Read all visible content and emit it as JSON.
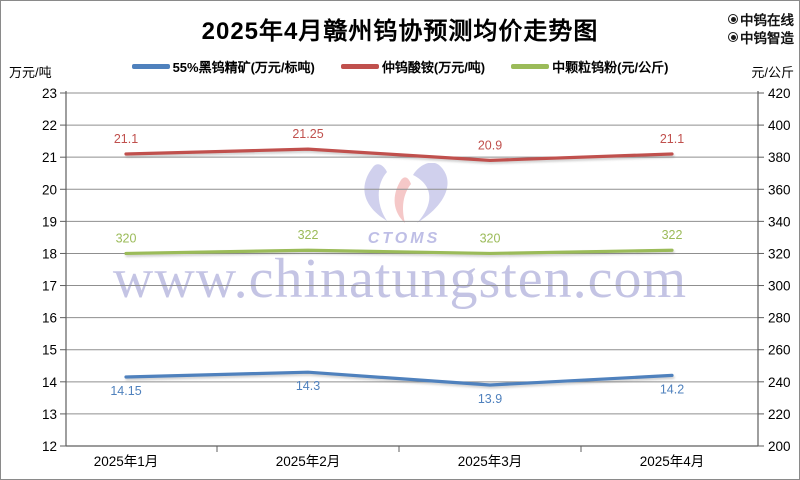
{
  "header": {
    "badges": [
      {
        "label": "中钨在线"
      },
      {
        "label": "中钨智造"
      }
    ]
  },
  "watermark": {
    "logo_text": "CTOMS",
    "url_text": "www.chinatungsten.com"
  },
  "chart_data": {
    "type": "line",
    "title": "2025年4月赣州钨协预测均价走势图",
    "categories": [
      "2025年1月",
      "2025年2月",
      "2025年3月",
      "2025年4月"
    ],
    "series": [
      {
        "name": "55%黑钨精矿(万元/标吨)",
        "color": "#4F81BD",
        "axis": "left",
        "values": [
          14.15,
          14.3,
          13.9,
          14.2
        ],
        "label_position": "below"
      },
      {
        "name": "仲钨酸铵(万元/吨)",
        "color": "#C0504D",
        "axis": "left",
        "values": [
          21.1,
          21.25,
          20.9,
          21.1
        ],
        "label_position": "above"
      },
      {
        "name": "中颗粒钨粉(元/公斤)",
        "color": "#9BBB59",
        "axis": "right",
        "values": [
          320,
          322,
          320,
          322
        ],
        "label_position": "above"
      }
    ],
    "left_axis": {
      "label": "万元/吨",
      "min": 12,
      "max": 23,
      "step": 1
    },
    "right_axis": {
      "label": "元/公斤",
      "min": 200,
      "max": 420,
      "step": 20
    },
    "grid": true,
    "legend_position": "top"
  },
  "colors": {
    "grid": "#8f8f8f",
    "axis": "#5f5f5f",
    "text": "#000000",
    "watermark": "#8a8acb",
    "logo_violet": "#a9a9de",
    "logo_pink": "#efa3a3"
  }
}
